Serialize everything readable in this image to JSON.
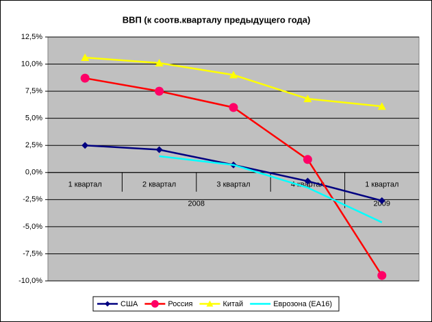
{
  "chart_data": {
    "type": "line",
    "title": "ВВП (к соотв.кварталу предыдущего года)",
    "categories": [
      "1 квартал",
      "2 квартал",
      "3 квартал",
      "4 квартал",
      "1 квартал"
    ],
    "category_groups": [
      "2008",
      "2008",
      "2008",
      "2008",
      "2009"
    ],
    "ylim": [
      -10,
      12.5
    ],
    "yticks": [
      {
        "value": -10,
        "label": "-10,0%"
      },
      {
        "value": -7.5,
        "label": "-7,5%"
      },
      {
        "value": -5,
        "label": "-5,0%"
      },
      {
        "value": -2.5,
        "label": "-2,5%"
      },
      {
        "value": 0,
        "label": "0,0%"
      },
      {
        "value": 2.5,
        "label": "2,5%"
      },
      {
        "value": 5,
        "label": "5,0%"
      },
      {
        "value": 7.5,
        "label": "7,5%"
      },
      {
        "value": 10,
        "label": "10,0%"
      },
      {
        "value": 12.5,
        "label": "12,5%"
      }
    ],
    "grid": true,
    "plot_background": "#c0c0c0",
    "legend": "bottom",
    "series": [
      {
        "name": "США",
        "color": "#000080",
        "marker": "diamond",
        "values": [
          2.5,
          2.1,
          0.7,
          -0.8,
          -2.6
        ]
      },
      {
        "name": "Россия",
        "color": "#ff0000",
        "marker": "circle",
        "marker_color": "#ff0066",
        "values": [
          8.7,
          7.5,
          6.0,
          1.2,
          -9.5
        ]
      },
      {
        "name": "Китай",
        "color": "#ffff00",
        "marker": "triangle",
        "values": [
          10.6,
          10.1,
          9.0,
          6.8,
          6.1
        ]
      },
      {
        "name": "Еврозона (ЕА16)",
        "color": "#00ffff",
        "marker": "none",
        "values": [
          null,
          1.5,
          0.7,
          -1.4,
          -4.6
        ]
      }
    ]
  }
}
